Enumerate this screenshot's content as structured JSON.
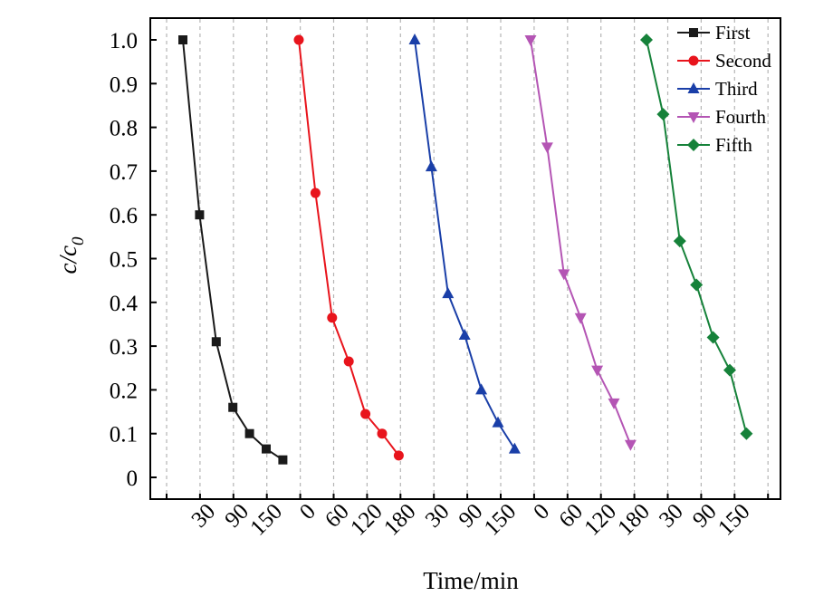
{
  "chart_data": {
    "type": "line",
    "xlabel": "Time/min",
    "ylabel_main": "c/c",
    "ylabel_sub": "0",
    "ylim": [
      0,
      1.0
    ],
    "yticks": [
      "0",
      "0.1",
      "0.2",
      "0.3",
      "0.4",
      "0.5",
      "0.6",
      "0.7",
      "0.8",
      "0.9",
      "1.0"
    ],
    "xtick_labels": [
      "30",
      "90",
      "150",
      "0",
      "60",
      "120",
      "180",
      "30",
      "90",
      "150",
      "0",
      "60",
      "120",
      "180",
      "30",
      "90",
      "150"
    ],
    "grid": "vertical dashed",
    "legend_position": "top-right",
    "series": [
      {
        "name": "First",
        "color": "#1a1a1a",
        "marker": "square",
        "x": [
          0,
          30,
          60,
          90,
          120,
          150,
          180
        ],
        "y": [
          1.0,
          0.6,
          0.31,
          0.16,
          0.1,
          0.065,
          0.04
        ]
      },
      {
        "name": "Second",
        "color": "#e8141c",
        "marker": "circle",
        "x": [
          0,
          30,
          60,
          90,
          120,
          150,
          180
        ],
        "y": [
          1.0,
          0.65,
          0.365,
          0.265,
          0.145,
          0.1,
          0.05
        ]
      },
      {
        "name": "Third",
        "color": "#1a3fa8",
        "marker": "triangle-up",
        "x": [
          0,
          30,
          60,
          90,
          120,
          150,
          180
        ],
        "y": [
          1.0,
          0.71,
          0.42,
          0.325,
          0.2,
          0.125,
          0.065
        ]
      },
      {
        "name": "Fourth",
        "color": "#b455b4",
        "marker": "triangle-down",
        "x": [
          0,
          30,
          60,
          90,
          120,
          150,
          180
        ],
        "y": [
          1.0,
          0.755,
          0.465,
          0.365,
          0.245,
          0.17,
          0.075
        ]
      },
      {
        "name": "Fifth",
        "color": "#16823a",
        "marker": "diamond",
        "x": [
          0,
          30,
          60,
          90,
          120,
          150,
          180
        ],
        "y": [
          1.0,
          0.83,
          0.54,
          0.44,
          0.32,
          0.245,
          0.1
        ]
      }
    ]
  }
}
